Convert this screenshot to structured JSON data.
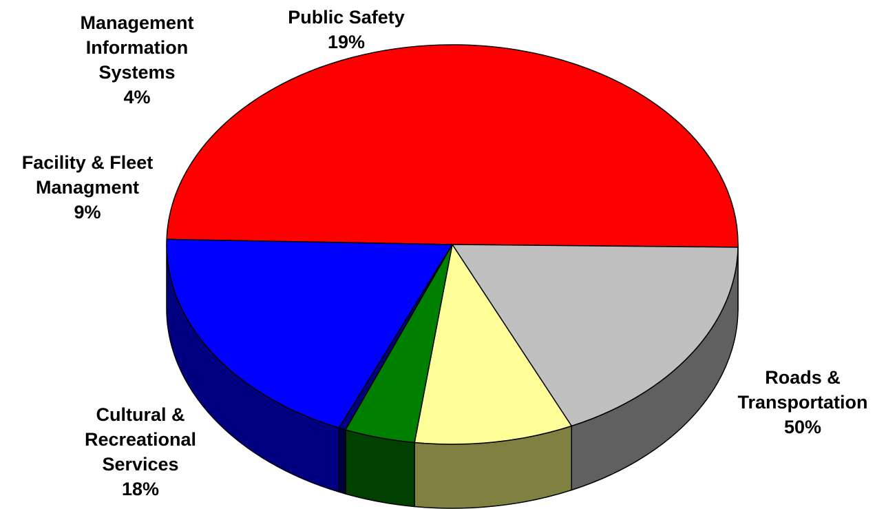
{
  "chart_data": {
    "type": "pie",
    "style": "3d",
    "slices": [
      {
        "name_lines": [
          "Roads &",
          "Transportation"
        ],
        "percent_text": "50%",
        "value": 50,
        "color": "#ff0000",
        "side_color": "#800000"
      },
      {
        "name_lines": [
          "Cultural &",
          "Recreational",
          "Services"
        ],
        "percent_text": "18%",
        "value": 18,
        "color": "#c0c0c0",
        "side_color": "#606060"
      },
      {
        "name_lines": [
          "Facility & Fleet",
          "Managment"
        ],
        "percent_text": "9%",
        "value": 9,
        "color": "#ffff99",
        "side_color": "#808040"
      },
      {
        "name_lines": [
          "Management",
          "Information",
          "Systems"
        ],
        "percent_text": "4%",
        "value": 4,
        "color": "#008000",
        "side_color": "#004000"
      },
      {
        "name_lines": [],
        "percent_text": "",
        "value": 0.4,
        "color": "#000080",
        "side_color": "#000040"
      },
      {
        "name_lines": [
          "Public Safety"
        ],
        "percent_text": "19%",
        "value": 19,
        "color": "#0000ff",
        "side_color": "#000080"
      }
    ]
  }
}
